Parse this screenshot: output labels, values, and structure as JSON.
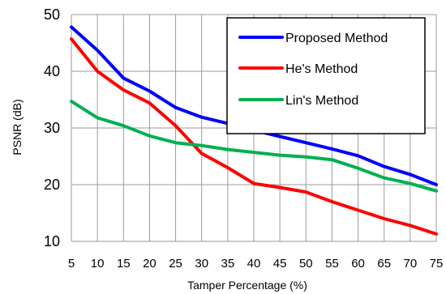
{
  "chart_data": {
    "type": "line",
    "title": "",
    "xlabel": "Tamper Percentage (%)",
    "ylabel": "PSNR (dB)",
    "x": [
      5,
      10,
      15,
      20,
      25,
      30,
      35,
      40,
      45,
      50,
      55,
      60,
      65,
      70,
      75
    ],
    "xlim": [
      5,
      75
    ],
    "ylim": [
      10,
      50
    ],
    "xticks": [
      "5",
      "10",
      "15",
      "20",
      "25",
      "30",
      "35",
      "40",
      "45",
      "50",
      "55",
      "60",
      "65",
      "70",
      "75"
    ],
    "yticks": [
      "10",
      "20",
      "30",
      "40",
      "50"
    ],
    "grid": true,
    "legend_position": "top-right",
    "series": [
      {
        "name": "Proposed Method",
        "color": "#0000ff",
        "values": [
          47.8,
          43.7,
          38.8,
          36.5,
          33.6,
          31.9,
          30.8,
          29.6,
          28.5,
          27.4,
          26.3,
          25.1,
          23.2,
          21.8,
          20.0
        ]
      },
      {
        "name": "He's Method",
        "color": "#ff0000",
        "values": [
          45.7,
          40.0,
          36.7,
          34.4,
          30.4,
          25.5,
          23.0,
          20.2,
          19.5,
          18.7,
          17.0,
          15.5,
          14.0,
          12.8,
          11.3
        ]
      },
      {
        "name": "Lin's Method",
        "color": "#00b050",
        "values": [
          34.7,
          31.8,
          30.4,
          28.6,
          27.4,
          26.9,
          26.2,
          25.7,
          25.2,
          24.9,
          24.4,
          22.9,
          21.2,
          20.2,
          18.9
        ]
      }
    ]
  }
}
